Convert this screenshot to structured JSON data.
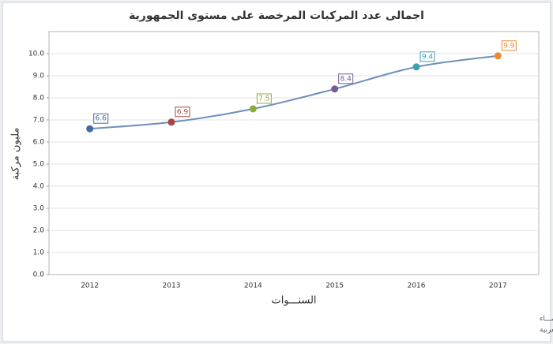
{
  "chart_data": {
    "type": "line",
    "title": "اجمالى عدد المركبات المرخصة على مستوى الجمهورية",
    "x_label": "السنـــوات",
    "y_label": "مليون مركبة",
    "categories": [
      "2012",
      "2013",
      "2014",
      "2015",
      "2016",
      "2017"
    ],
    "values": [
      6.6,
      6.9,
      7.5,
      8.4,
      9.4,
      9.9
    ],
    "point_colors": [
      "#3e6ea5",
      "#a94543",
      "#8bab3f",
      "#785a9b",
      "#3d9fb4",
      "#ee8a2e"
    ],
    "color": "#6d8fba",
    "ylim": [
      0,
      11
    ],
    "yticks": [
      {
        "value": 0,
        "label": "0.0"
      },
      {
        "value": 1,
        "label": "1.0"
      },
      {
        "value": 2,
        "label": "2.0"
      },
      {
        "value": 3,
        "label": "3.0"
      },
      {
        "value": 4,
        "label": "4.0"
      },
      {
        "value": 5,
        "label": "5.0"
      },
      {
        "value": 6,
        "label": "6.0"
      },
      {
        "value": 7,
        "label": "7.0"
      },
      {
        "value": 8,
        "label": "8.0"
      },
      {
        "value": 9,
        "label": "9.0"
      },
      {
        "value": 10,
        "label": "10.0"
      }
    ],
    "grid": true,
    "source": [
      "حقوق الملكية للجهـــاز المركزي للتعبئة العـامة والأحصـــاء",
      "المصدر الأسـاسـي للأحصاءات الرسمية لجمهورية مصر العربية"
    ]
  }
}
